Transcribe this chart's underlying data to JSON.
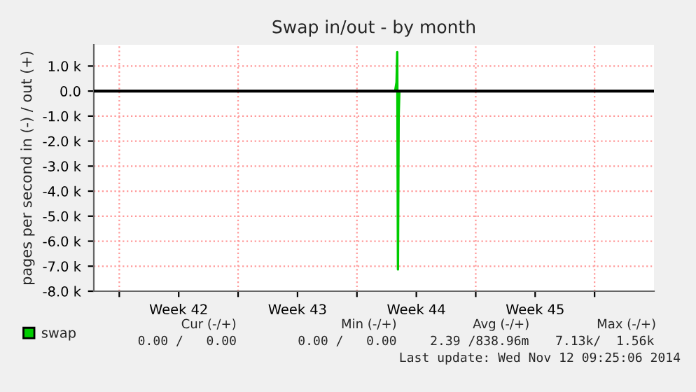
{
  "chart_data": {
    "type": "line",
    "title": "Swap in/out - by month",
    "ylabel": "pages per second in (-) / out (+)",
    "x": [
      "2014-10-29T06:00",
      "2014-10-29T08:00",
      "2014-10-29T09:00",
      "2014-10-29T10:00",
      "2014-10-29T11:00",
      "2014-10-29T12:00"
    ],
    "series": [
      {
        "name": "swap",
        "color": "#00cc00",
        "values": [
          0,
          350,
          1560,
          -7130,
          -1000,
          0
        ]
      }
    ],
    "xlim": [
      "2014-10-11T12:00",
      "2014-11-13T12:00"
    ],
    "xticks": [
      {
        "value": "2014-10-13T00:00",
        "label": null
      },
      {
        "value": "2014-10-16T12:00",
        "label": "Week 42"
      },
      {
        "value": "2014-10-20T00:00",
        "label": null
      },
      {
        "value": "2014-10-23T12:00",
        "label": "Week 43"
      },
      {
        "value": "2014-10-27T00:00",
        "label": null
      },
      {
        "value": "2014-10-30T12:00",
        "label": "Week 44"
      },
      {
        "value": "2014-11-03T00:00",
        "label": null
      },
      {
        "value": "2014-11-06T12:00",
        "label": "Week 45"
      },
      {
        "value": "2014-11-10T00:00",
        "label": null
      }
    ],
    "ylim": [
      -8000,
      1850
    ],
    "yticks": [
      {
        "value": 1000,
        "label": "1.0 k"
      },
      {
        "value": 0,
        "label": "0.0"
      },
      {
        "value": -1000,
        "label": "-1.0 k"
      },
      {
        "value": -2000,
        "label": "-2.0 k"
      },
      {
        "value": -3000,
        "label": "-3.0 k"
      },
      {
        "value": -4000,
        "label": "-4.0 k"
      },
      {
        "value": -5000,
        "label": "-5.0 k"
      },
      {
        "value": -6000,
        "label": "-6.0 k"
      },
      {
        "value": -7000,
        "label": "-7.0 k"
      },
      {
        "value": -8000,
        "label": "-8.0 k"
      }
    ],
    "ref_lines": [
      {
        "axis": "y",
        "value": 0,
        "color": "#000000"
      }
    ],
    "grid": true,
    "legend": "bottom left",
    "annotations": [
      "Cur (-/+)",
      "Min (-/+)",
      "Avg (-/+)",
      "Max (-/+)",
      "0.00 /   0.00",
      "0.00 /   0.00",
      "2.39 /838.96m",
      "7.13k/  1.56k",
      "Last update: Wed Nov 12 09:25:06 2014"
    ]
  }
}
